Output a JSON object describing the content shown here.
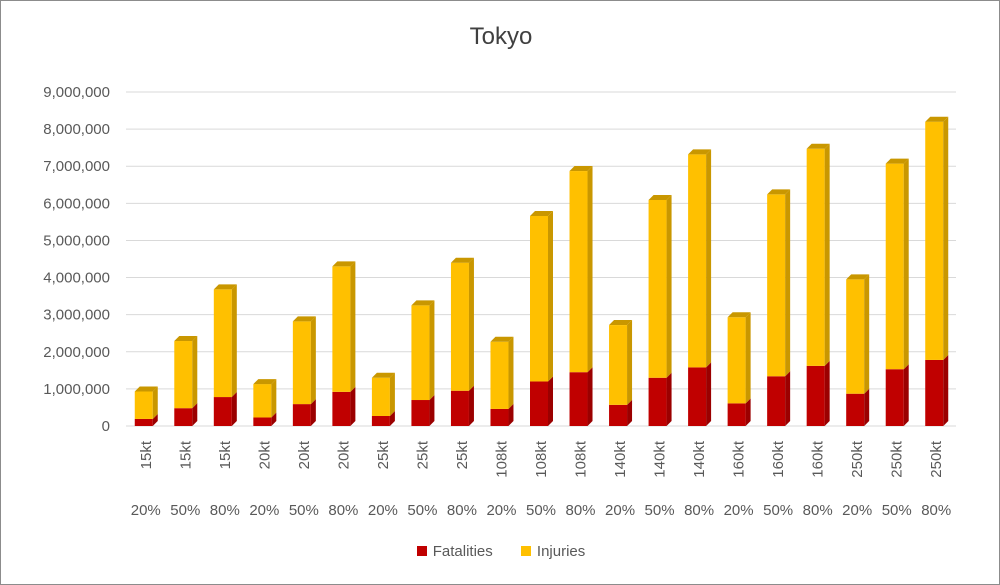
{
  "chart_data": {
    "type": "bar",
    "stacked": true,
    "title": "Tokyo",
    "categories_level1": [
      "15kt",
      "15kt",
      "15kt",
      "20kt",
      "20kt",
      "20kt",
      "25kt",
      "25kt",
      "25kt",
      "108kt",
      "108kt",
      "108kt",
      "140kt",
      "140kt",
      "140kt",
      "160kt",
      "160kt",
      "160kt",
      "250kt",
      "250kt",
      "250kt"
    ],
    "categories_level2": [
      "20%",
      "50%",
      "80%",
      "20%",
      "50%",
      "80%",
      "20%",
      "50%",
      "80%",
      "20%",
      "50%",
      "80%",
      "20%",
      "50%",
      "80%",
      "20%",
      "50%",
      "80%",
      "20%",
      "50%",
      "80%"
    ],
    "series": [
      {
        "name": "Fatalities",
        "color": "#c00000",
        "top_color": "#9b0000",
        "values": [
          190000,
          480000,
          780000,
          230000,
          590000,
          920000,
          270000,
          700000,
          950000,
          460000,
          1200000,
          1450000,
          570000,
          1300000,
          1580000,
          610000,
          1340000,
          1620000,
          870000,
          1530000,
          1780000
        ]
      },
      {
        "name": "Injuries",
        "color": "#ffc000",
        "top_color": "#c99700",
        "values": [
          740000,
          1810000,
          2900000,
          900000,
          2230000,
          3380000,
          1030000,
          2550000,
          3450000,
          1810000,
          4460000,
          5420000,
          2150000,
          4790000,
          5740000,
          2320000,
          4900000,
          5850000,
          3080000,
          5540000,
          6420000
        ]
      }
    ],
    "y_ticks": [
      "0",
      "1,000,000",
      "2,000,000",
      "3,000,000",
      "4,000,000",
      "5,000,000",
      "6,000,000",
      "7,000,000",
      "8,000,000",
      "9,000,000"
    ],
    "ylim": [
      0,
      9000000
    ],
    "grid": true,
    "legend_position": "bottom"
  }
}
